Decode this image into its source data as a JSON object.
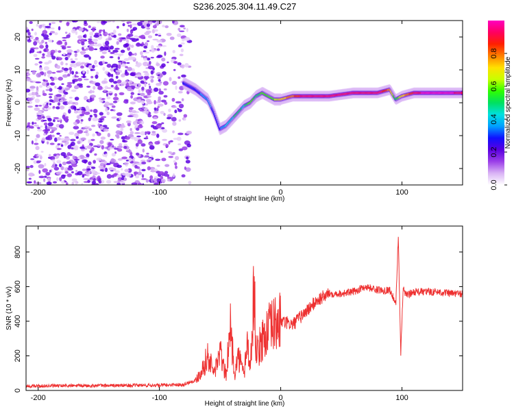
{
  "title": "S236.2025.304.11.49.C27",
  "chart_data": [
    {
      "type": "heatmap",
      "name": "spectrogram",
      "xlabel": "Height of straight line (km)",
      "ylabel": "Frequency (Hz)",
      "xlim": [
        -210,
        150
      ],
      "ylim": [
        -25,
        25
      ],
      "x_ticks": [
        -200,
        -100,
        0,
        100
      ],
      "y_ticks": [
        -20,
        -10,
        0,
        10,
        20
      ],
      "colorbar": {
        "label": "Normalized spectral amplitude",
        "range": [
          0,
          1
        ],
        "ticks": [
          0.0,
          0.2,
          0.4,
          0.6,
          0.8
        ],
        "tick_labels": [
          "0.0",
          "0.2",
          "0.4",
          "0.6",
          "0.8"
        ],
        "colors": [
          "#ffffff",
          "#d9b3f5",
          "#9b3fe8",
          "#5a00e0",
          "#1010ff",
          "#00a0ff",
          "#00e0e0",
          "#00e060",
          "#30ff00",
          "#c8ff00",
          "#ffe000",
          "#ff8000",
          "#ff2000",
          "#ff0060",
          "#ff00c0"
        ]
      },
      "ridge": {
        "x": [
          -80,
          -70,
          -60,
          -55,
          -50,
          -45,
          -40,
          -35,
          -30,
          -25,
          -20,
          -15,
          -10,
          -5,
          0,
          10,
          20,
          40,
          60,
          80,
          90,
          95,
          100,
          110,
          120,
          140,
          150
        ],
        "frequency": [
          6,
          4,
          1,
          -3,
          -8,
          -7,
          -5,
          -3,
          -1,
          0,
          2,
          3,
          2,
          1,
          1,
          2,
          2,
          2,
          3,
          3,
          4,
          1,
          2,
          3,
          3,
          3,
          3
        ],
        "amplitude": [
          0.25,
          0.3,
          0.35,
          0.3,
          0.3,
          0.4,
          0.45,
          0.5,
          0.45,
          0.6,
          0.5,
          0.55,
          0.6,
          0.6,
          0.7,
          0.8,
          0.95,
          0.9,
          0.9,
          0.95,
          0.8,
          0.5,
          0.7,
          0.9,
          1.0,
          1.0,
          0.9
        ]
      }
    },
    {
      "type": "line",
      "name": "snr",
      "xlabel": "Height of straight line (km)",
      "ylabel": "SNR (10 * v/v)",
      "xlim": [
        -210,
        150
      ],
      "ylim": [
        0,
        950
      ],
      "x_ticks": [
        -200,
        -100,
        0,
        100
      ],
      "y_ticks": [
        0,
        200,
        400,
        600,
        800
      ],
      "color": "#ee3030",
      "series": [
        {
          "name": "SNR",
          "x": [
            -210,
            -150,
            -100,
            -80,
            -70,
            -65,
            -60,
            -55,
            -50,
            -45,
            -42,
            -40,
            -38,
            -35,
            -30,
            -28,
            -25,
            -22,
            -20,
            -15,
            -10,
            -5,
            0,
            10,
            20,
            30,
            40,
            50,
            60,
            70,
            80,
            90,
            95,
            97,
            99,
            101,
            103,
            110,
            120,
            130,
            140,
            150
          ],
          "y": [
            25,
            28,
            30,
            35,
            60,
            120,
            200,
            100,
            220,
            80,
            380,
            250,
            100,
            200,
            90,
            300,
            120,
            600,
            200,
            300,
            350,
            380,
            400,
            380,
            450,
            520,
            560,
            560,
            570,
            600,
            580,
            580,
            500,
            900,
            200,
            600,
            550,
            570,
            570,
            570,
            560,
            560
          ]
        }
      ]
    }
  ]
}
